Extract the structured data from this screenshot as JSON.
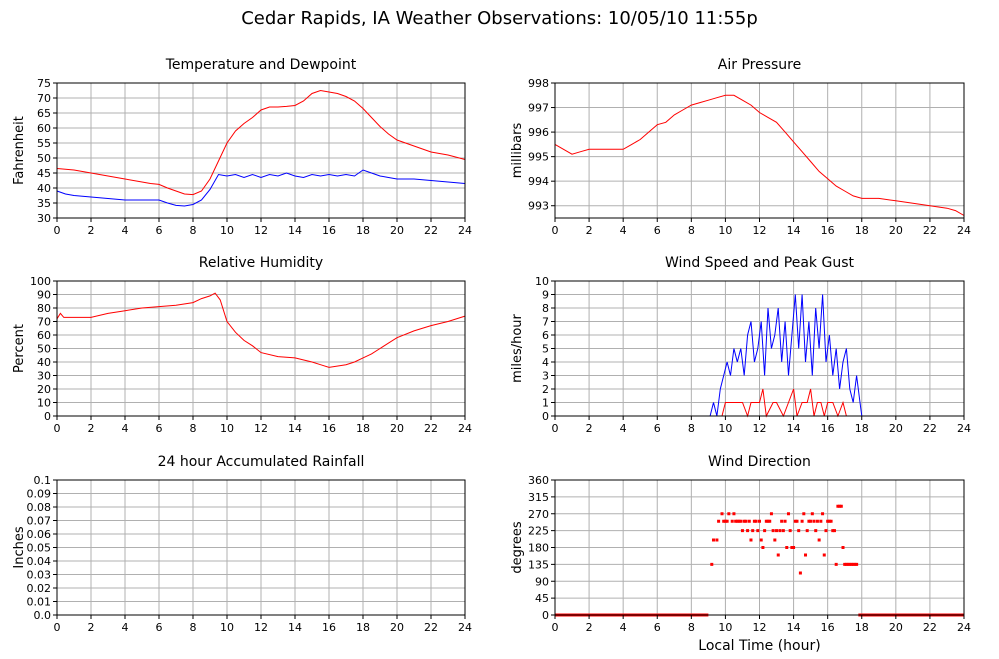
{
  "page": {
    "title": "Cedar Rapids, IA Weather Observations: 10/05/10 11:55p"
  },
  "colors": {
    "primary": "#ff0000",
    "secondary": "#0000ff",
    "grid": "#b0b0b0",
    "frame": "#000000"
  },
  "chart_data": [
    {
      "type": "line",
      "title": "Temperature and Dewpoint",
      "xlabel": "",
      "ylabel": "Fahrenheit",
      "xlim": [
        0,
        24
      ],
      "ylim": [
        30,
        75
      ],
      "grid": true,
      "xticks": [
        0,
        2,
        4,
        6,
        8,
        10,
        12,
        14,
        16,
        18,
        20,
        22,
        24
      ],
      "yticks": [
        30,
        35,
        40,
        45,
        50,
        55,
        60,
        65,
        70,
        75
      ],
      "series": [
        {
          "color": "#ff0000",
          "x": [
            0,
            1,
            2,
            3,
            4,
            5,
            5.5,
            6,
            6.5,
            7,
            7.5,
            8,
            8.5,
            9,
            9.5,
            10,
            10.5,
            11,
            11.5,
            12,
            12.5,
            13,
            13.5,
            14,
            14.5,
            15,
            15.5,
            16,
            16.5,
            17,
            17.5,
            18,
            18.5,
            19,
            19.5,
            20,
            21,
            22,
            23,
            24
          ],
          "y": [
            46.5,
            46,
            45,
            44,
            43,
            42,
            41.5,
            41.2,
            40,
            39,
            38,
            37.8,
            39,
            43,
            49,
            55,
            59,
            61.5,
            63.5,
            66,
            67,
            67,
            67.2,
            67.5,
            69,
            71.5,
            72.5,
            72,
            71.5,
            70.5,
            69,
            66.5,
            63.5,
            60.5,
            58,
            56,
            54,
            52,
            51,
            49.5
          ]
        },
        {
          "color": "#0000ff",
          "x": [
            0,
            0.5,
            1,
            2,
            3,
            4,
            5,
            6,
            6.5,
            7,
            7.5,
            8,
            8.5,
            9,
            9.5,
            10,
            10.5,
            11,
            11.5,
            12,
            12.5,
            13,
            13.5,
            14,
            14.5,
            15,
            15.5,
            16,
            16.5,
            17,
            17.5,
            18,
            18.5,
            19,
            19.5,
            20,
            21,
            22,
            23,
            24
          ],
          "y": [
            39,
            38,
            37.5,
            37,
            36.5,
            36,
            36,
            36,
            35,
            34.2,
            34,
            34.5,
            36,
            39.5,
            44.5,
            44,
            44.5,
            43.5,
            44.5,
            43.5,
            44.5,
            44,
            45,
            44,
            43.5,
            44.5,
            44,
            44.5,
            44,
            44.5,
            44,
            46,
            45,
            44,
            43.5,
            43,
            43,
            42.5,
            42,
            41.5
          ]
        }
      ]
    },
    {
      "type": "line",
      "title": "Air Pressure",
      "xlabel": "",
      "ylabel": "millibars",
      "xlim": [
        0,
        24
      ],
      "ylim": [
        992.5,
        998
      ],
      "grid": true,
      "xticks": [
        0,
        2,
        4,
        6,
        8,
        10,
        12,
        14,
        16,
        18,
        20,
        22,
        24
      ],
      "yticks": [
        993,
        994,
        995,
        996,
        997,
        998
      ],
      "series": [
        {
          "color": "#ff0000",
          "x": [
            0,
            0.5,
            1,
            1.5,
            2,
            3,
            4,
            4.5,
            5,
            5.5,
            6,
            6.5,
            7,
            7.5,
            8,
            8.5,
            9,
            9.5,
            10,
            10.5,
            11,
            11.5,
            12,
            12.5,
            13,
            13.5,
            14,
            14.5,
            15,
            15.5,
            16,
            16.5,
            17,
            17.5,
            18,
            19,
            20,
            21,
            22,
            23,
            23.5,
            24
          ],
          "y": [
            995.5,
            995.3,
            995.1,
            995.2,
            995.3,
            995.3,
            995.3,
            995.5,
            995.7,
            996,
            996.3,
            996.4,
            996.7,
            996.9,
            997.1,
            997.2,
            997.3,
            997.4,
            997.5,
            997.5,
            997.3,
            997.1,
            996.8,
            996.6,
            996.4,
            996,
            995.6,
            995.2,
            994.8,
            994.4,
            994.1,
            993.8,
            993.6,
            993.4,
            993.3,
            993.3,
            993.2,
            993.1,
            993,
            992.9,
            992.8,
            992.6
          ]
        }
      ]
    },
    {
      "type": "line",
      "title": "Relative Humidity",
      "xlabel": "",
      "ylabel": "Percent",
      "xlim": [
        0,
        24
      ],
      "ylim": [
        0,
        100
      ],
      "grid": true,
      "xticks": [
        0,
        2,
        4,
        6,
        8,
        10,
        12,
        14,
        16,
        18,
        20,
        22,
        24
      ],
      "yticks": [
        0,
        10,
        20,
        30,
        40,
        50,
        60,
        70,
        80,
        90,
        100
      ],
      "series": [
        {
          "color": "#ff0000",
          "x": [
            0,
            0.2,
            0.4,
            1,
            2,
            3,
            4,
            5,
            6,
            7,
            8,
            8.5,
            9,
            9.3,
            9.6,
            10,
            10.5,
            11,
            11.5,
            12,
            13,
            14,
            15,
            15.5,
            16,
            17,
            17.5,
            18,
            18.5,
            19,
            19.5,
            20,
            21,
            22,
            23,
            24
          ],
          "y": [
            72,
            76,
            73,
            73,
            73,
            76,
            78,
            80,
            81,
            82,
            84,
            87,
            89,
            91,
            86,
            70,
            62,
            56,
            52,
            47,
            44,
            43,
            40,
            38,
            36,
            38,
            40,
            43,
            46,
            50,
            54,
            58,
            63,
            67,
            70,
            74
          ]
        }
      ]
    },
    {
      "type": "line",
      "title": "Wind Speed and Peak Gust",
      "xlabel": "",
      "ylabel": "miles/hour",
      "xlim": [
        0,
        24
      ],
      "ylim": [
        0,
        10
      ],
      "grid": true,
      "xticks": [
        0,
        2,
        4,
        6,
        8,
        10,
        12,
        14,
        16,
        18,
        20,
        22,
        24
      ],
      "yticks": [
        0,
        1,
        2,
        3,
        4,
        5,
        6,
        7,
        8,
        9,
        10
      ],
      "series": [
        {
          "color": "#0000ff",
          "x": [
            0,
            9.1,
            9.3,
            9.5,
            9.7,
            9.9,
            10.1,
            10.3,
            10.5,
            10.7,
            10.9,
            11.1,
            11.3,
            11.5,
            11.7,
            11.9,
            12.1,
            12.3,
            12.5,
            12.7,
            12.9,
            13.1,
            13.3,
            13.5,
            13.7,
            13.9,
            14.1,
            14.3,
            14.5,
            14.7,
            14.9,
            15.1,
            15.3,
            15.5,
            15.7,
            15.9,
            16.1,
            16.3,
            16.5,
            16.7,
            16.9,
            17.1,
            17.3,
            17.5,
            17.7,
            17.9,
            18,
            24
          ],
          "y": [
            0,
            0,
            1,
            0,
            2,
            3,
            4,
            3,
            5,
            4,
            5,
            3,
            6,
            7,
            4,
            5,
            7,
            3,
            8,
            5,
            6,
            8,
            4,
            7,
            3,
            6,
            9,
            5,
            9,
            4,
            7,
            3,
            8,
            5,
            9,
            4,
            6,
            3,
            5,
            2,
            4,
            5,
            2,
            1,
            3,
            1,
            0,
            0
          ]
        },
        {
          "color": "#ff0000",
          "x": [
            0,
            9.8,
            10,
            10.5,
            11,
            11.3,
            11.5,
            12,
            12.2,
            12.4,
            12.8,
            13,
            13.4,
            13.7,
            14,
            14.2,
            14.5,
            14.8,
            15,
            15.2,
            15.4,
            15.6,
            15.8,
            16,
            16.3,
            16.6,
            16.9,
            17.1,
            24
          ],
          "y": [
            0,
            0,
            1,
            1,
            1,
            0,
            1,
            1,
            2,
            0,
            1,
            1,
            0,
            1,
            2,
            0,
            1,
            1,
            2,
            0,
            1,
            1,
            0,
            1,
            1,
            0,
            1,
            0,
            0
          ]
        }
      ]
    },
    {
      "type": "line",
      "title": "24 hour Accumulated Rainfall",
      "xlabel": "",
      "ylabel": "Inches",
      "xlim": [
        0,
        24
      ],
      "ylim": [
        0,
        0.1
      ],
      "grid": true,
      "xticks": [
        0,
        2,
        4,
        6,
        8,
        10,
        12,
        14,
        16,
        18,
        20,
        22,
        24
      ],
      "yticks": [
        0.0,
        0.01,
        0.02,
        0.03,
        0.04,
        0.05,
        0.06,
        0.07,
        0.08,
        0.09,
        0.1
      ],
      "ytick_labels": [
        "0.0",
        "0.01",
        "0.02",
        "0.03",
        "0.04",
        "0.05",
        "0.06",
        "0.07",
        "0.08",
        "0.09",
        "0.1"
      ],
      "series": [
        {
          "color": "#ff0000",
          "x": [
            0,
            24
          ],
          "y": [
            0,
            0
          ]
        }
      ]
    },
    {
      "type": "scatter",
      "title": "Wind Direction",
      "xlabel": "Local Time (hour)",
      "ylabel": "degrees",
      "xlim": [
        0,
        24
      ],
      "ylim": [
        0,
        360
      ],
      "grid": true,
      "xticks": [
        0,
        2,
        4,
        6,
        8,
        10,
        12,
        14,
        16,
        18,
        20,
        22,
        24
      ],
      "yticks": [
        0,
        45,
        90,
        135,
        180,
        225,
        270,
        315,
        360
      ],
      "series": [
        {
          "color": "#ff0000",
          "line_segments": [
            [
              0,
              9.0
            ],
            [
              17.8,
              24
            ]
          ],
          "x": [
            9.2,
            9.3,
            9.5,
            9.6,
            9.8,
            9.9,
            10.0,
            10.1,
            10.2,
            10.4,
            10.5,
            10.6,
            10.7,
            10.8,
            10.9,
            11.0,
            11.1,
            11.2,
            11.3,
            11.4,
            11.5,
            11.6,
            11.7,
            11.8,
            11.9,
            12.0,
            12.1,
            12.2,
            12.3,
            12.4,
            12.5,
            12.6,
            12.7,
            12.8,
            12.9,
            13.0,
            13.1,
            13.2,
            13.3,
            13.4,
            13.5,
            13.6,
            13.7,
            13.8,
            13.9,
            14.0,
            14.1,
            14.2,
            14.3,
            14.4,
            14.5,
            14.6,
            14.7,
            14.8,
            14.9,
            15.0,
            15.1,
            15.2,
            15.3,
            15.4,
            15.5,
            15.6,
            15.7,
            15.8,
            15.9,
            16.0,
            16.1,
            16.2,
            16.3,
            16.4,
            16.5,
            16.6,
            16.7,
            16.8,
            16.9,
            17.0,
            17.1,
            17.2,
            17.3,
            17.4,
            17.5,
            17.6,
            17.7
          ],
          "y": [
            135,
            200,
            200,
            250,
            270,
            250,
            250,
            250,
            270,
            250,
            270,
            250,
            250,
            250,
            250,
            225,
            250,
            250,
            225,
            250,
            200,
            225,
            250,
            250,
            225,
            250,
            200,
            180,
            225,
            250,
            250,
            250,
            270,
            225,
            200,
            225,
            160,
            225,
            250,
            225,
            250,
            180,
            270,
            225,
            180,
            180,
            250,
            250,
            225,
            112,
            250,
            270,
            160,
            225,
            250,
            250,
            270,
            250,
            225,
            250,
            200,
            250,
            270,
            160,
            225,
            250,
            250,
            250,
            225,
            225,
            135,
            290,
            290,
            290,
            180,
            135,
            135,
            135,
            135,
            135,
            135,
            135,
            135
          ]
        }
      ]
    }
  ]
}
